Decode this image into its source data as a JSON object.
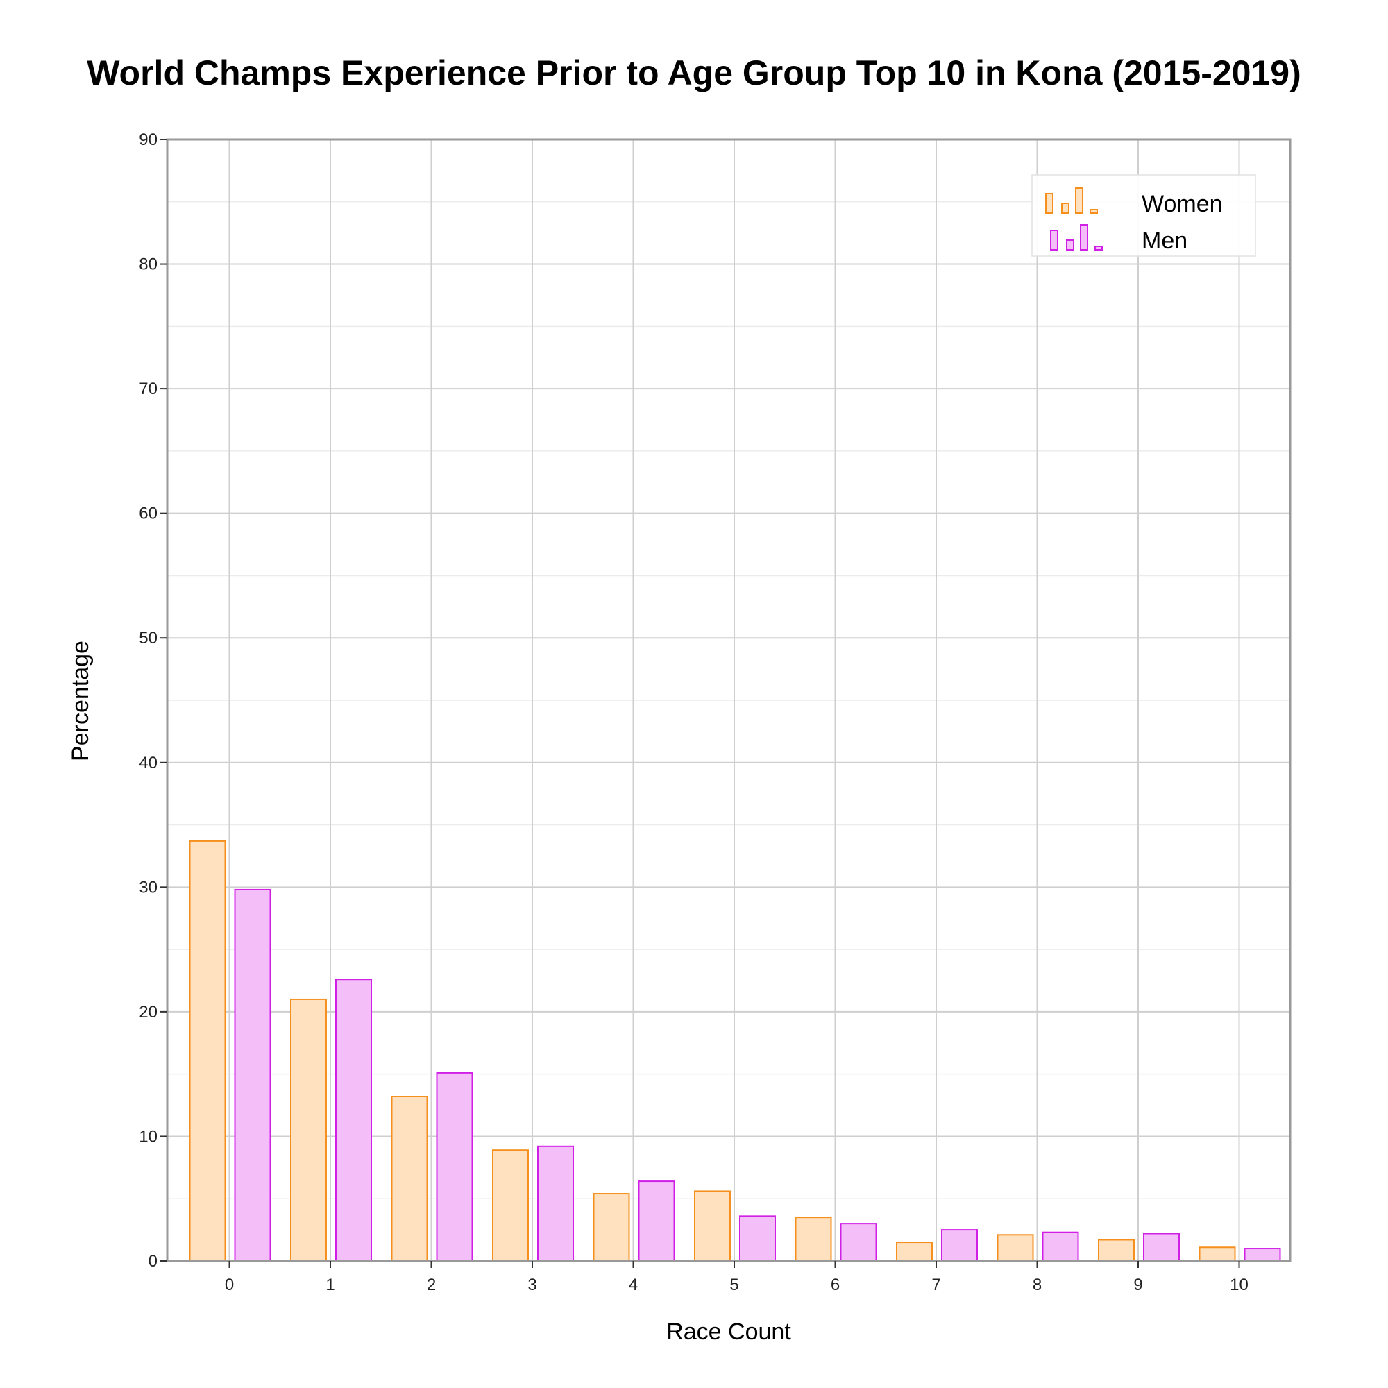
{
  "chart_data": {
    "type": "bar",
    "title": "World Champs Experience Prior to Age Group Top 10 in Kona (2015-2019)",
    "xlabel": "Race Count",
    "ylabel": "Percentage",
    "categories": [
      "0",
      "1",
      "2",
      "3",
      "4",
      "5",
      "6",
      "7",
      "8",
      "9",
      "10"
    ],
    "series": [
      {
        "name": "Women",
        "values": [
          33.7,
          21.0,
          13.2,
          8.9,
          5.4,
          5.6,
          3.5,
          1.5,
          2.1,
          1.7,
          1.1
        ],
        "fill": "#ffe0bf",
        "stroke": "#f5901f"
      },
      {
        "name": "Men",
        "values": [
          29.8,
          22.6,
          15.1,
          9.2,
          6.4,
          3.6,
          3.0,
          2.5,
          2.3,
          2.2,
          1.0
        ],
        "fill": "#f4bff9",
        "stroke": "#d020e6"
      }
    ],
    "ylim": [
      0,
      90
    ],
    "yticks": [
      "0",
      "10",
      "20",
      "30",
      "40",
      "50",
      "60",
      "70",
      "80",
      "90"
    ],
    "grid": true,
    "legend_position": "top-right"
  }
}
